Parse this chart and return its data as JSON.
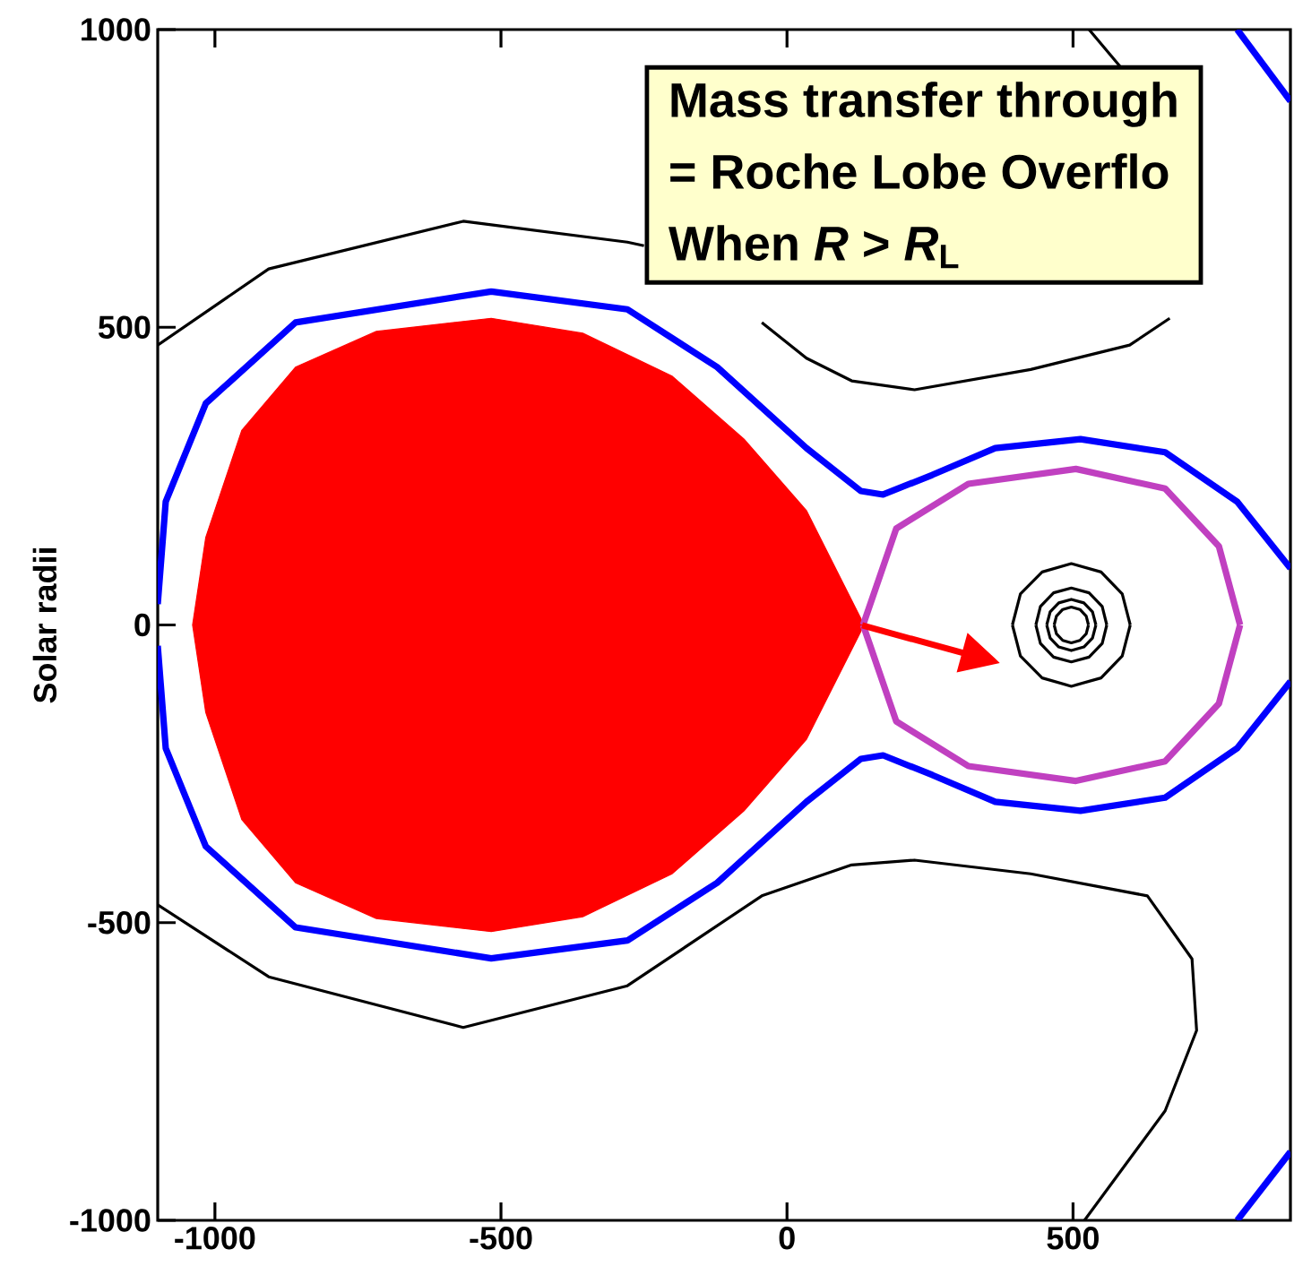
{
  "chart_data": {
    "type": "line",
    "ylabel": "Solar radii",
    "xlim": [
      -1100,
      880
    ],
    "ylim": [
      -1000,
      1000
    ],
    "xticks": [
      -1000,
      -500,
      0,
      500
    ],
    "yticks": [
      -1000,
      -500,
      0,
      500,
      1000
    ],
    "grid": false,
    "marker": "none",
    "annotations": [
      "Mass transfer through",
      "= Roche Lobe Overflo",
      "When *R* > *R*$_{L}$"
    ],
    "series": [
      {
        "type": "area",
        "color": "#ff0000",
        "x": [
          133,
          129,
          34,
          -75,
          -201,
          -357,
          -517,
          -718,
          -859,
          -953,
          -1016,
          -1039,
          -1016,
          -953,
          -859,
          -718,
          -517,
          -357,
          -201,
          -75,
          34,
          129,
          133
        ],
        "values": [
          0,
          11,
          192,
          312,
          418,
          490,
          515,
          493,
          433,
          327,
          147,
          0,
          -147,
          -327,
          -433,
          -493,
          -515,
          -490,
          -418,
          -312,
          -192,
          -11,
          0
        ]
      },
      {
        "color": "#c040c0",
        "x": [
          133,
          191,
          317,
          505,
          661,
          755,
          792
        ],
        "values": [
          0,
          162,
          237,
          262,
          229,
          132,
          0
        ]
      },
      {
        "color": "#c040c0",
        "x": [
          133,
          191,
          317,
          505,
          661,
          755,
          792
        ],
        "values": [
          0,
          -162,
          -237,
          -262,
          -229,
          -132,
          0
        ]
      },
      {
        "color": "#0000ff",
        "x": [
          -1100,
          -1086,
          -1016,
          -859,
          -517,
          -279,
          -122,
          34,
          129,
          168,
          254,
          364,
          513,
          661,
          787,
          880
        ],
        "values": [
          35,
          207,
          372,
          508,
          560,
          530,
          433,
          297,
          225,
          219,
          252,
          297,
          312,
          290,
          207,
          95
        ]
      },
      {
        "color": "#0000ff",
        "x": [
          -1100,
          -1086,
          -1016,
          -859,
          -517,
          -279,
          -122,
          34,
          129,
          168,
          254,
          364,
          513,
          661,
          787,
          880
        ],
        "values": [
          -35,
          -207,
          -372,
          -508,
          -560,
          -530,
          -433,
          -297,
          -225,
          -219,
          -252,
          -297,
          -312,
          -290,
          -207,
          -95
        ]
      },
      {
        "color": "#0000ff",
        "x": [
          787,
          880
        ],
        "values": [
          1000,
          880
        ]
      },
      {
        "color": "#0000ff",
        "x": [
          787,
          880
        ],
        "values": [
          -1000,
          -885
        ]
      },
      {
        "color": "#000000",
        "x": [
          -1100,
          -906,
          -566,
          -279,
          -250,
          null,
          -44,
          34,
          113,
          223,
          426,
          599,
          669,
          null,
          528,
          583
        ],
        "values": [
          470,
          598,
          678,
          643,
          637,
          null,
          508,
          448,
          410,
          395,
          429,
          470,
          515,
          null,
          1000,
          937
        ]
      },
      {
        "color": "#000000",
        "x": [
          -1100,
          -906,
          -566,
          -279,
          -44,
          113,
          223,
          426,
          630,
          708,
          716,
          661,
          520
        ],
        "values": [
          -470,
          -591,
          -676,
          -606,
          -455,
          -403,
          -395,
          -418,
          -455,
          -561,
          -681,
          -816,
          -1000
        ]
      },
      {
        "color": "#000000",
        "x": [
          394,
          408,
          446,
          497,
          549,
          586,
          600
        ],
        "values": [
          0,
          52,
          89,
          103,
          89,
          52,
          0
        ]
      },
      {
        "color": "#000000",
        "x": [
          394,
          408,
          446,
          497,
          549,
          586,
          600
        ],
        "values": [
          0,
          -52,
          -89,
          -103,
          -89,
          -52,
          0
        ]
      },
      {
        "color": "#000000",
        "x": [
          435,
          443,
          466,
          497,
          528,
          551,
          559
        ],
        "values": [
          0,
          31,
          54,
          62,
          54,
          31,
          0
        ]
      },
      {
        "color": "#000000",
        "x": [
          435,
          443,
          466,
          497,
          528,
          551,
          559
        ],
        "values": [
          0,
          -31,
          -54,
          -62,
          -54,
          -31,
          0
        ]
      },
      {
        "color": "#000000",
        "x": [
          454,
          460,
          475,
          497,
          519,
          534,
          540
        ],
        "values": [
          0,
          22,
          37,
          43,
          37,
          22,
          0
        ]
      },
      {
        "color": "#000000",
        "x": [
          454,
          460,
          475,
          497,
          519,
          534,
          540
        ],
        "values": [
          0,
          -22,
          -37,
          -43,
          -37,
          -22,
          0
        ]
      },
      {
        "color": "#000000",
        "x": [
          467,
          471,
          482,
          497,
          512,
          523,
          527
        ],
        "values": [
          0,
          15,
          26,
          30,
          26,
          15,
          0
        ]
      },
      {
        "color": "#000000",
        "x": [
          467,
          471,
          482,
          497,
          512,
          523,
          527
        ],
        "values": [
          0,
          -15,
          -26,
          -30,
          -26,
          -15,
          0
        ]
      }
    ]
  }
}
